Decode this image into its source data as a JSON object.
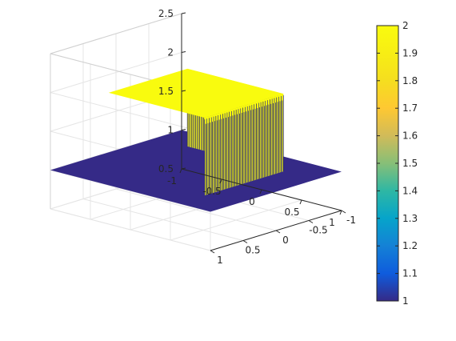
{
  "chart_data": {
    "type": "surface",
    "x_ticks": [
      "-1",
      "-0.5",
      "0",
      "0.5",
      "1"
    ],
    "y_ticks": [
      "-1",
      "-0.5",
      "0",
      "0.5",
      "1"
    ],
    "z_ticks": [
      "0.5",
      "1",
      "1.5",
      "2",
      "2.5"
    ],
    "xlim": [
      -1,
      1
    ],
    "ylim": [
      -1,
      1
    ],
    "zlim": [
      0.5,
      2.5
    ],
    "surface": {
      "base_level": 1,
      "plateau_level": 2,
      "plateau_x_range": [
        -0.6,
        0.6
      ],
      "plateau_y_range": [
        -0.6,
        0.6
      ]
    },
    "colorbar": {
      "range": [
        1,
        2
      ],
      "ticks": [
        "1",
        "1.1",
        "1.2",
        "1.3",
        "1.4",
        "1.5",
        "1.6",
        "1.7",
        "1.8",
        "1.9",
        "2"
      ],
      "colormap": "parula",
      "low_color": "#352a87",
      "high_color": "#f9fb0e"
    },
    "grid": true,
    "box": "half"
  }
}
